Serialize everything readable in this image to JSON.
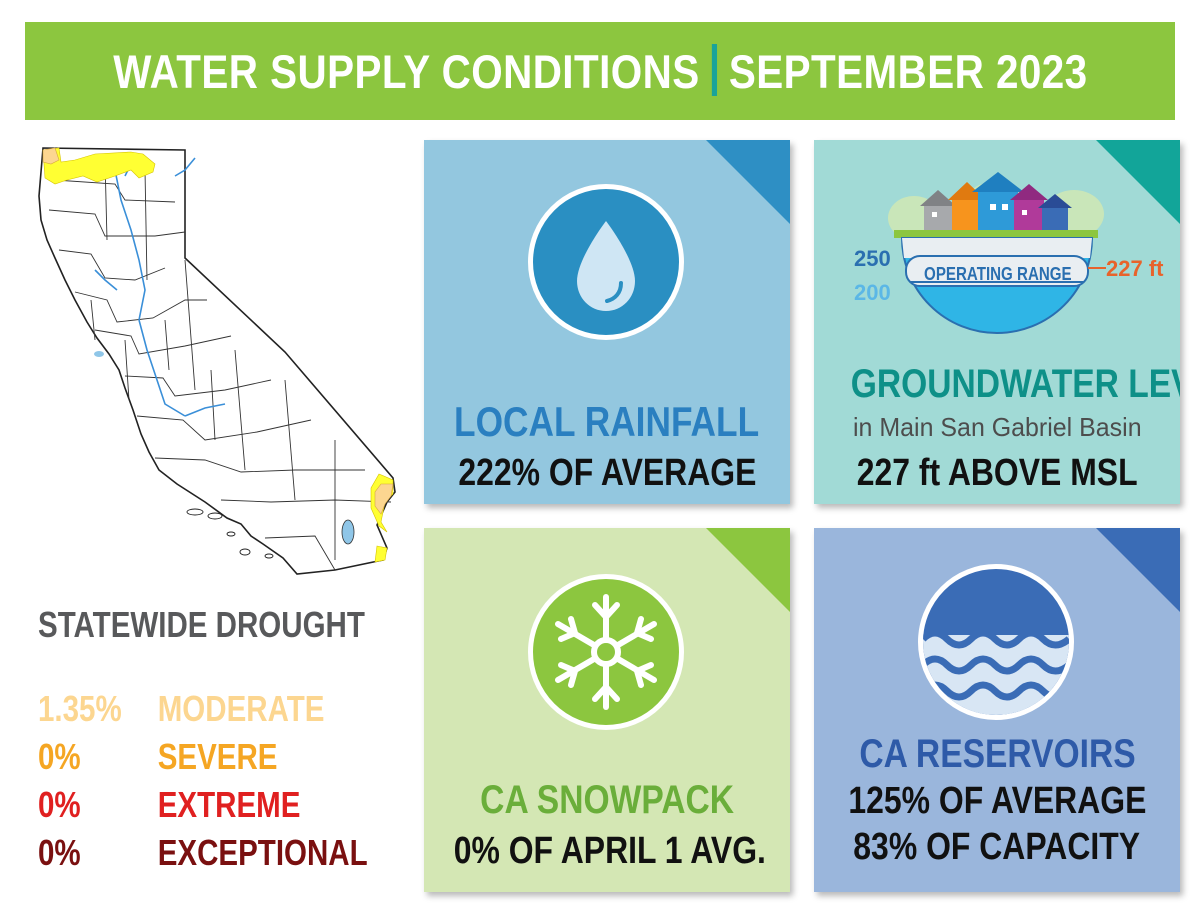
{
  "banner": {
    "left_text": "WATER SUPPLY CONDITIONS",
    "right_text": "SEPTEMBER 2023"
  },
  "drought": {
    "title": "STATEWIDE DROUGHT",
    "rows": [
      {
        "pct": "1.35%",
        "label": "MODERATE",
        "color": "#fcd690"
      },
      {
        "pct": "0%",
        "label": "SEVERE",
        "color": "#f5a623"
      },
      {
        "pct": "0%",
        "label": "EXTREME",
        "color": "#e02020"
      },
      {
        "pct": "0%",
        "label": "EXCEPTIONAL",
        "color": "#7a1010"
      }
    ]
  },
  "cards": {
    "rainfall": {
      "title": "LOCAL RAINFALL",
      "value": "222% OF AVERAGE",
      "bg": "#93c7df",
      "accent": "#2e8fc4",
      "icon": "water-drop-icon"
    },
    "groundwater": {
      "title": "GROUNDWATER LEVEL",
      "subtitle": "in Main San Gabriel Basin",
      "value": "227 ft ABOVE MSL",
      "range_label": "OPERATING RANGE",
      "range_high": "250",
      "range_low": "200",
      "current_level": "227 ft",
      "bg": "#a1dad6",
      "accent": "#12a599",
      "icon": "groundwater-basin-icon"
    },
    "snowpack": {
      "title": "CA SNOWPACK",
      "value": "0% OF APRIL 1 AVG.",
      "bg": "#d4e7b4",
      "accent": "#8cc63f",
      "icon": "snowflake-icon"
    },
    "reservoirs": {
      "title": "CA RESERVOIRS",
      "value_1": "125% OF AVERAGE",
      "value_2": "83% OF CAPACITY",
      "bg": "#9ab6dc",
      "accent": "#3a6cb6",
      "icon": "waves-icon"
    }
  }
}
